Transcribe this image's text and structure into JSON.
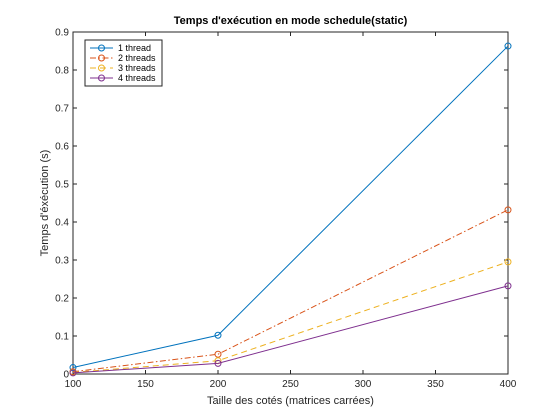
{
  "chart_data": {
    "type": "line",
    "title": "Temps d'exécution en mode schedule(static)",
    "xlabel": "Taille des cotés (matrices carrées)",
    "ylabel": "Temps d'éxécution (s)",
    "x": [
      100,
      200,
      400
    ],
    "xlim": [
      100,
      400
    ],
    "ylim": [
      0,
      0.9
    ],
    "xticks": [
      "100",
      "150",
      "200",
      "250",
      "300",
      "350",
      "400"
    ],
    "yticks": [
      "0",
      "0.1",
      "0.2",
      "0.3",
      "0.4",
      "0.5",
      "0.6",
      "0.7",
      "0.8",
      "0.9"
    ],
    "grid": false,
    "legend_position": "top-left",
    "series": [
      {
        "name": "1 thread",
        "values": [
          0.017,
          0.102,
          0.863
        ],
        "color": "#0072BD",
        "dash": "solid"
      },
      {
        "name": "2 threads",
        "values": [
          0.006,
          0.052,
          0.432
        ],
        "color": "#D95319",
        "dash": "dashdot"
      },
      {
        "name": "3 threads",
        "values": [
          0.004,
          0.035,
          0.295
        ],
        "color": "#EDB120",
        "dash": "dashed"
      },
      {
        "name": "4 threads",
        "values": [
          0.003,
          0.028,
          0.232
        ],
        "color": "#7E2F8E",
        "dash": "solid"
      }
    ]
  }
}
